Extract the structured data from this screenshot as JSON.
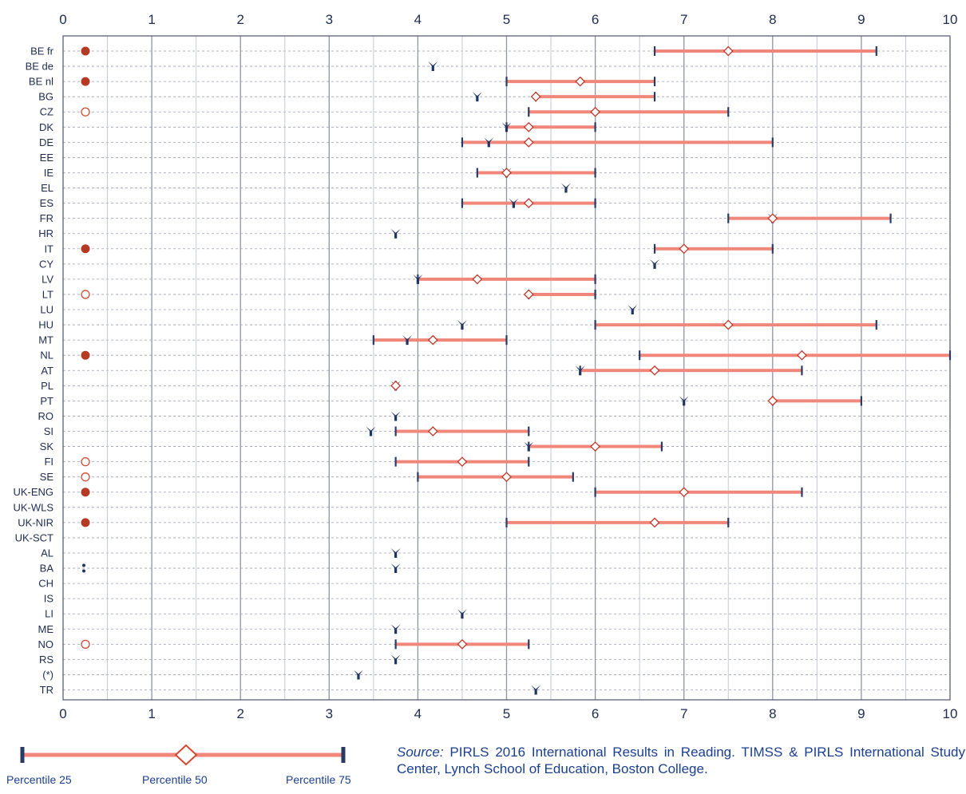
{
  "chart_data": {
    "type": "range",
    "xlim": [
      0,
      10
    ],
    "x_ticks": [
      "0",
      "1",
      "2",
      "3",
      "4",
      "5",
      "6",
      "7",
      "8",
      "9",
      "10"
    ],
    "colors": {
      "range": "#f0877a",
      "median_fill": "#ffffff",
      "median_stroke": "#c0392b",
      "whisker": "#2a3a66",
      "marker": "#1f3461",
      "filled_dot": "#b53a24",
      "open_dot": "#d04b32",
      "grid_major": "#8f93a6",
      "grid_minor": "#c5c8d3"
    },
    "rows": [
      {
        "label": "BE fr",
        "dot": "filled",
        "p25": 6.67,
        "p50": 7.5,
        "p75": 9.17
      },
      {
        "label": "BE de",
        "marker": 4.17
      },
      {
        "label": "BE nl",
        "dot": "filled",
        "p25": 5.0,
        "p50": 5.83,
        "p75": 6.67
      },
      {
        "label": "BG",
        "marker": 4.67,
        "p25": 5.33,
        "p50": 5.33,
        "p75": 6.67
      },
      {
        "label": "CZ",
        "dot": "open",
        "p25": 5.25,
        "p50": 6.0,
        "p75": 7.5
      },
      {
        "label": "DK",
        "marker": 5.0,
        "p25": 5.0,
        "p50": 5.25,
        "p75": 6.0
      },
      {
        "label": "DE",
        "marker": 4.8,
        "p25": 4.5,
        "p50": 5.25,
        "p75": 8.0
      },
      {
        "label": "EE"
      },
      {
        "label": "IE",
        "marker": 5.0,
        "p25": 4.67,
        "p50": 5.0,
        "p75": 6.0
      },
      {
        "label": "EL",
        "marker": 5.67
      },
      {
        "label": "ES",
        "marker": 5.08,
        "p25": 4.5,
        "p50": 5.25,
        "p75": 6.0
      },
      {
        "label": "FR",
        "marker": 8.0,
        "p25": 7.5,
        "p50": 8.0,
        "p75": 9.33
      },
      {
        "label": "HR",
        "marker": 3.75
      },
      {
        "label": "IT",
        "dot": "filled",
        "p25": 6.67,
        "p50": 7.0,
        "p75": 8.0
      },
      {
        "label": "CY",
        "marker": 6.67
      },
      {
        "label": "LV",
        "marker": 4.0,
        "p25": 4.0,
        "p50": 4.67,
        "p75": 6.0
      },
      {
        "label": "LT",
        "dot": "open",
        "p25": 5.25,
        "p50": 5.25,
        "p75": 6.0
      },
      {
        "label": "LU",
        "marker": 6.42
      },
      {
        "label": "HU",
        "marker": 4.5,
        "p25": 6.0,
        "p50": 7.5,
        "p75": 9.17
      },
      {
        "label": "MT",
        "marker": 3.88,
        "p25": 3.5,
        "p50": 4.17,
        "p75": 5.0
      },
      {
        "label": "NL",
        "dot": "filled",
        "p25": 6.5,
        "p50": 8.33,
        "p75": 10.0
      },
      {
        "label": "AT",
        "marker": 5.83,
        "p25": 5.83,
        "p50": 6.67,
        "p75": 8.33
      },
      {
        "label": "PL",
        "marker": 3.75,
        "p25": 3.75,
        "p50": 3.75,
        "p75": 3.75
      },
      {
        "label": "PT",
        "marker": 7.0,
        "p25": 8.0,
        "p50": 8.0,
        "p75": 9.0
      },
      {
        "label": "RO",
        "marker": 3.75
      },
      {
        "label": "SI",
        "marker": 3.47,
        "p25": 3.75,
        "p50": 4.17,
        "p75": 5.25
      },
      {
        "label": "SK",
        "marker": 5.25,
        "p25": 5.25,
        "p50": 6.0,
        "p75": 6.75
      },
      {
        "label": "FI",
        "dot": "open",
        "p25": 3.75,
        "p50": 4.5,
        "p75": 5.25
      },
      {
        "label": "SE",
        "dot": "open",
        "p25": 4.0,
        "p50": 5.0,
        "p75": 5.75
      },
      {
        "label": "UK-ENG",
        "dot": "filled",
        "p25": 6.0,
        "p50": 7.0,
        "p75": 8.33
      },
      {
        "label": "UK-WLS"
      },
      {
        "label": "UK-NIR",
        "dot": "filled",
        "p25": 5.0,
        "p50": 6.67,
        "p75": 7.5
      },
      {
        "label": "UK-SCT"
      },
      {
        "label": "AL",
        "marker": 3.75
      },
      {
        "label": "BA",
        "dot": "colon",
        "marker": 3.75
      },
      {
        "label": "CH"
      },
      {
        "label": "IS"
      },
      {
        "label": "LI",
        "marker": 4.5
      },
      {
        "label": "ME",
        "marker": 3.75
      },
      {
        "label": "NO",
        "dot": "open",
        "p25": 3.75,
        "p50": 4.5,
        "p75": 5.25
      },
      {
        "label": "RS",
        "marker": 3.75
      },
      {
        "label": "(*)",
        "marker": 3.33
      },
      {
        "label": "TR",
        "marker": 5.33
      }
    ],
    "legend": {
      "p25": "Percentile 25",
      "p50": "Percentile 50",
      "p75": "Percentile 75"
    }
  },
  "source": {
    "label": "Source:",
    "text": " PIRLS 2016 International Results in Reading. TIMSS & PIRLS International Study Center, Lynch School of Education, Boston College."
  }
}
